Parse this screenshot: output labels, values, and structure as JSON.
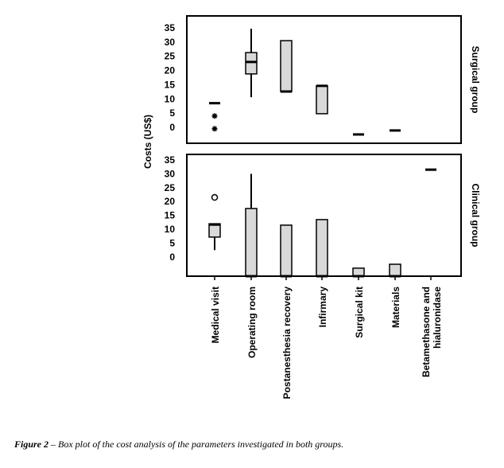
{
  "chart_data": {
    "type": "box",
    "y_label": "Costs (US$)",
    "categories": [
      "Medical visit",
      "Operating room",
      "Postanesthesia recovery",
      "Infirmary",
      "Surgical kit",
      "Materials",
      "Betamethasone and\nhialuronidase"
    ],
    "box_color": "#d9d9d9",
    "panels": [
      {
        "name": "Surgical group",
        "ylim": [
          -5.6,
          39.2
        ],
        "yticks": [
          0,
          5,
          10,
          15,
          20,
          25,
          30,
          35
        ],
        "outlier_marker": "star",
        "boxes": [
          {
            "min": 8.5,
            "q1": 8.5,
            "median": 8.5,
            "q3": 8.5,
            "max": 8.5,
            "outliers": [
              4,
              -0.5
            ]
          },
          {
            "min": 10.6,
            "q1": 18.8,
            "median": 23,
            "q3": 26.3,
            "max": 34.7,
            "outliers": []
          },
          {
            "min": 12.6,
            "q1": 12.6,
            "median": 12.6,
            "q3": 30.5,
            "max": 30.5,
            "outliers": []
          },
          {
            "min": 4.8,
            "q1": 4.8,
            "median": 14.6,
            "q3": 14.6,
            "max": 14.6,
            "outliers": []
          },
          {
            "min": -2.5,
            "q1": -2.5,
            "median": -2.5,
            "q3": -2.5,
            "max": -2.5,
            "outliers": []
          },
          {
            "min": -1.1,
            "q1": -1.1,
            "median": -1.1,
            "q3": -1.1,
            "max": -1.1,
            "outliers": []
          },
          null
        ]
      },
      {
        "name": "Clinical group",
        "ylim": [
          -6.9,
          37
        ],
        "yticks": [
          0,
          5,
          10,
          15,
          20,
          25,
          30,
          35
        ],
        "outlier_marker": "circle",
        "boxes": [
          {
            "min": 2.5,
            "q1": 7.2,
            "median": 11.7,
            "q3": 12,
            "max": 12,
            "outliers": [
              21.5
            ]
          },
          {
            "min": -6.9,
            "q1": -6.9,
            "median": -6.9,
            "q3": 17.5,
            "max": 30,
            "outliers": []
          },
          {
            "min": -6.9,
            "q1": -6.9,
            "median": -6.9,
            "q3": 11.5,
            "max": 11.5,
            "outliers": []
          },
          {
            "min": -6.9,
            "q1": -6.9,
            "median": -6.9,
            "q3": 13.5,
            "max": 13.5,
            "outliers": []
          },
          {
            "min": -6.9,
            "q1": -6.9,
            "median": -6.9,
            "q3": -4,
            "max": -4,
            "outliers": []
          },
          {
            "min": -6.9,
            "q1": -6.9,
            "median": -6.9,
            "q3": -2.6,
            "max": -2.6,
            "outliers": []
          },
          {
            "min": 31.5,
            "q1": 31.5,
            "median": 31.5,
            "q3": 31.5,
            "max": 31.5,
            "outliers": []
          }
        ]
      }
    ]
  },
  "caption_label": "Figure 2",
  "caption_text": " – Box plot of the cost analysis of the parameters investigated in both groups."
}
